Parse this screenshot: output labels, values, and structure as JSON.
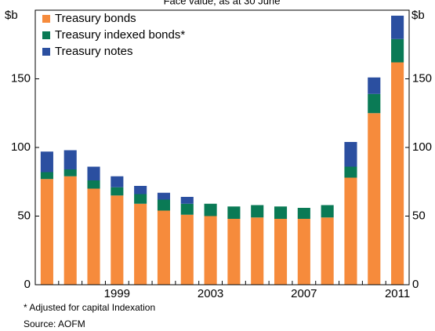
{
  "chart_data": {
    "type": "bar",
    "stacked": true,
    "subtitle": "Face value, as at 30 June",
    "y_label": "$b",
    "categories": [
      null,
      null,
      null,
      "1999",
      null,
      null,
      null,
      "2003",
      null,
      null,
      null,
      "2007",
      null,
      null,
      null,
      "2011"
    ],
    "series": [
      {
        "name": "Treasury bonds",
        "color": "#f68b3c",
        "values": [
          77,
          79,
          70,
          65,
          59,
          54,
          51,
          50,
          48,
          49,
          48,
          48,
          49,
          78,
          125,
          162
        ]
      },
      {
        "name": "Treasury indexed bonds*",
        "color": "#0a7a55",
        "values": [
          5,
          5,
          6,
          6,
          7,
          8,
          8,
          9,
          9,
          9,
          9,
          8,
          9,
          8,
          14,
          17
        ]
      },
      {
        "name": "Treasury notes",
        "color": "#2b4fa0",
        "values": [
          15,
          14,
          10,
          8,
          6,
          5,
          5,
          0,
          0,
          0,
          0,
          0,
          0,
          18,
          12,
          17
        ]
      }
    ],
    "ylim": [
      0,
      200
    ],
    "yticks": [
      0,
      50,
      100,
      150
    ],
    "legend": "top-left",
    "notes": [
      "*  Adjusted for capital Indexation",
      "Source: AOFM"
    ]
  }
}
